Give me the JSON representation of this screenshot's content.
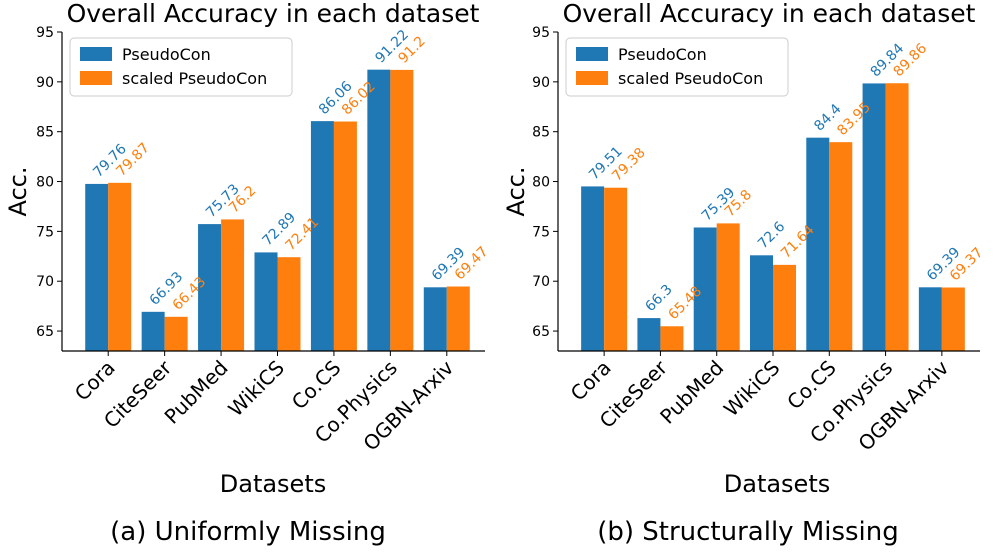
{
  "chart_data": [
    {
      "type": "bar",
      "title": "Overall Accuracy in each dataset",
      "caption": "(a) Uniformly Missing",
      "xlabel": "Datasets",
      "ylabel": "Acc.",
      "categories": [
        "Cora",
        "CiteSeer",
        "PubMed",
        "WikiCS",
        "Co.CS",
        "Co.Physics",
        "OGBN-Arxiv"
      ],
      "ylim": [
        63,
        95
      ],
      "yticks": [
        65,
        70,
        75,
        80,
        85,
        90,
        95
      ],
      "legend_position": "top-left",
      "grid": false,
      "series": [
        {
          "name": "PseudoCon",
          "color": "#1f77b4",
          "values": [
            79.76,
            66.93,
            75.73,
            72.89,
            86.06,
            91.22,
            69.39
          ],
          "labels": [
            "79.76",
            "66.93",
            "75.73",
            "72.89",
            "86.06",
            "91.22",
            "69.39"
          ]
        },
        {
          "name": "scaled PseudoCon",
          "color": "#ff7f0e",
          "values": [
            79.87,
            66.43,
            76.2,
            72.41,
            86.02,
            91.2,
            69.47
          ],
          "labels": [
            "79.87",
            "66.43",
            "76.2",
            "72.41",
            "86.02",
            "91.2",
            "69.47"
          ]
        }
      ]
    },
    {
      "type": "bar",
      "title": "Overall Accuracy in each dataset",
      "caption": "(b) Structurally Missing",
      "xlabel": "Datasets",
      "ylabel": "Acc.",
      "categories": [
        "Cora",
        "CiteSeer",
        "PubMed",
        "WikiCS",
        "Co.CS",
        "Co.Physics",
        "OGBN-Arxiv"
      ],
      "ylim": [
        63,
        95
      ],
      "yticks": [
        65,
        70,
        75,
        80,
        85,
        90,
        95
      ],
      "legend_position": "top-left",
      "grid": false,
      "series": [
        {
          "name": "PseudoCon",
          "color": "#1f77b4",
          "values": [
            79.51,
            66.3,
            75.39,
            72.6,
            84.4,
            89.84,
            69.39
          ],
          "labels": [
            "79.51",
            "66.3",
            "75.39",
            "72.6",
            "84.4",
            "89.84",
            "69.39"
          ]
        },
        {
          "name": "scaled PseudoCon",
          "color": "#ff7f0e",
          "values": [
            79.38,
            65.48,
            75.8,
            71.64,
            83.95,
            89.86,
            69.37
          ],
          "labels": [
            "79.38",
            "65.48",
            "75.8",
            "71.64",
            "83.95",
            "89.86",
            "69.37"
          ]
        }
      ]
    }
  ]
}
